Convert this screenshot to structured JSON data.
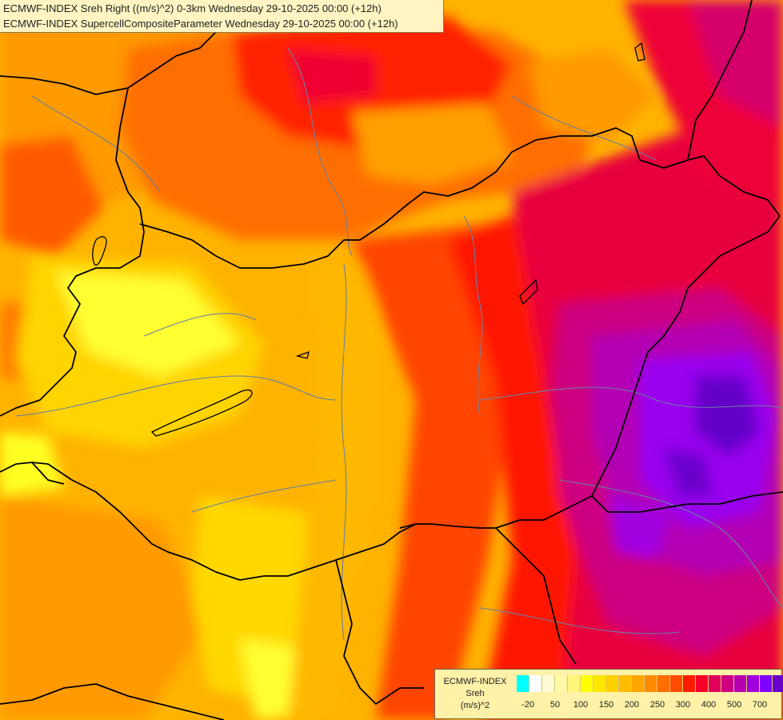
{
  "header": {
    "line1": "ECMWF-INDEX Sreh Right ((m/s)^2) 0-3km Wednesday 29-10-2025 00:00 (+12h)",
    "line2": "ECMWF-INDEX SupercellCompositeParameter Wednesday 29-10-2025 00:00 (+12h)"
  },
  "legend": {
    "source": "ECMWF-INDEX",
    "variable": "Sreh",
    "unit": "(m/s)^2",
    "colors": [
      "#00ffff",
      "#ffffff",
      "#fffbd4",
      "#fff8a6",
      "#fff57a",
      "#ffff00",
      "#ffe600",
      "#ffd000",
      "#ffbb00",
      "#ffa600",
      "#ff8c00",
      "#ff6e00",
      "#ff4c00",
      "#ff1c00",
      "#f50028",
      "#e0005a",
      "#cc0080",
      "#b800b0",
      "#a000dd",
      "#8000ff",
      "#6a00cc",
      "#4c0099",
      "#22008a"
    ],
    "ticks": [
      "-20",
      "50",
      "100",
      "150",
      "200",
      "250",
      "300",
      "400",
      "500",
      "700"
    ]
  },
  "map": {
    "field_colors": {
      "yellow_light": "#ffff33",
      "yellow": "#ffe600",
      "amber": "#ffbb00",
      "orange": "#ff9a00",
      "orange_dark": "#ff7a00",
      "red_orange": "#ff4c00",
      "red": "#ff1800",
      "crimson": "#ee0030",
      "magenta": "#d40070",
      "violet": "#b800c0",
      "purple": "#9a00f0",
      "indigo": "#6a00cc"
    },
    "border_color": "#000000",
    "river_color": "#6b7fa0"
  }
}
